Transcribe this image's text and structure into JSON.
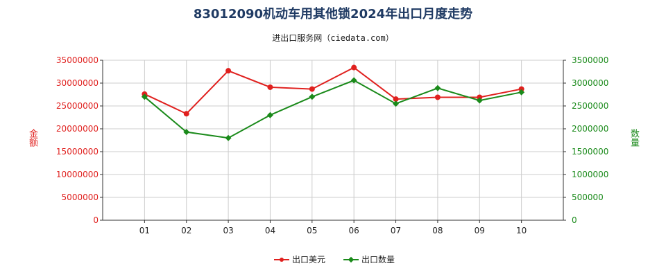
{
  "header": {
    "title": "83012090机动车用其他锁2024年出口月度走势",
    "subtitle": "进出口服务网（ciedata.com）"
  },
  "colors": {
    "usd": "#e0201e",
    "qty": "#1a8a1a",
    "grid": "#cccccc"
  },
  "chart_data": {
    "type": "line",
    "title": "83012090机动车用其他锁2024年出口月度走势",
    "categories": [
      "01",
      "02",
      "03",
      "04",
      "05",
      "06",
      "07",
      "08",
      "09",
      "10"
    ],
    "left_axis": {
      "label": "金额",
      "ylim": [
        0,
        35000000
      ],
      "ticks": [
        "0",
        "5000000",
        "10000000",
        "15000000",
        "20000000",
        "25000000",
        "30000000",
        "35000000"
      ]
    },
    "right_axis": {
      "label": "数量",
      "ylim": [
        0,
        3500000
      ],
      "ticks": [
        "0",
        "500000",
        "1000000",
        "1500000",
        "2000000",
        "2500000",
        "3000000",
        "3500000"
      ]
    },
    "series": [
      {
        "name": "出口美元",
        "axis": "left",
        "color": "#e0201e",
        "marker": "circle",
        "values": [
          27600000,
          23300000,
          32700000,
          29100000,
          28700000,
          33400000,
          26500000,
          26900000,
          26900000,
          28700000
        ]
      },
      {
        "name": "出口数量",
        "axis": "right",
        "color": "#1a8a1a",
        "marker": "diamond",
        "values": [
          2700000,
          1930000,
          1800000,
          2300000,
          2700000,
          3060000,
          2550000,
          2890000,
          2620000,
          2800000
        ]
      }
    ],
    "grid": true,
    "legend_position": "bottom-center"
  }
}
